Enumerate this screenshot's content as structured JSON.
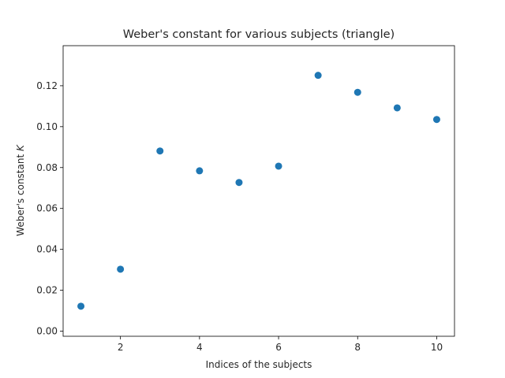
{
  "chart_data": {
    "type": "scatter",
    "title": "Weber's constant for various subjects (triangle)",
    "xlabel": "Indices of the subjects",
    "ylabel_text": "Weber's constant ",
    "ylabel_symbol": "K",
    "x": [
      1,
      2,
      3,
      4,
      5,
      6,
      7,
      8,
      9,
      10
    ],
    "y": [
      0.0122,
      0.0303,
      0.0881,
      0.0784,
      0.0727,
      0.0807,
      0.1251,
      0.1168,
      0.1092,
      0.1035
    ],
    "xlim": [
      0.55,
      10.45
    ],
    "ylim": [
      -0.0025,
      0.1396
    ],
    "xticks": [
      2,
      4,
      6,
      8,
      10
    ],
    "xtick_labels": [
      "2",
      "4",
      "6",
      "8",
      "10"
    ],
    "yticks": [
      0.0,
      0.02,
      0.04,
      0.06,
      0.08,
      0.1,
      0.12
    ],
    "ytick_labels": [
      "0.00",
      "0.02",
      "0.04",
      "0.06",
      "0.08",
      "0.10",
      "0.12"
    ],
    "marker_color": "#1f77b4",
    "grid": false,
    "legend": false
  }
}
